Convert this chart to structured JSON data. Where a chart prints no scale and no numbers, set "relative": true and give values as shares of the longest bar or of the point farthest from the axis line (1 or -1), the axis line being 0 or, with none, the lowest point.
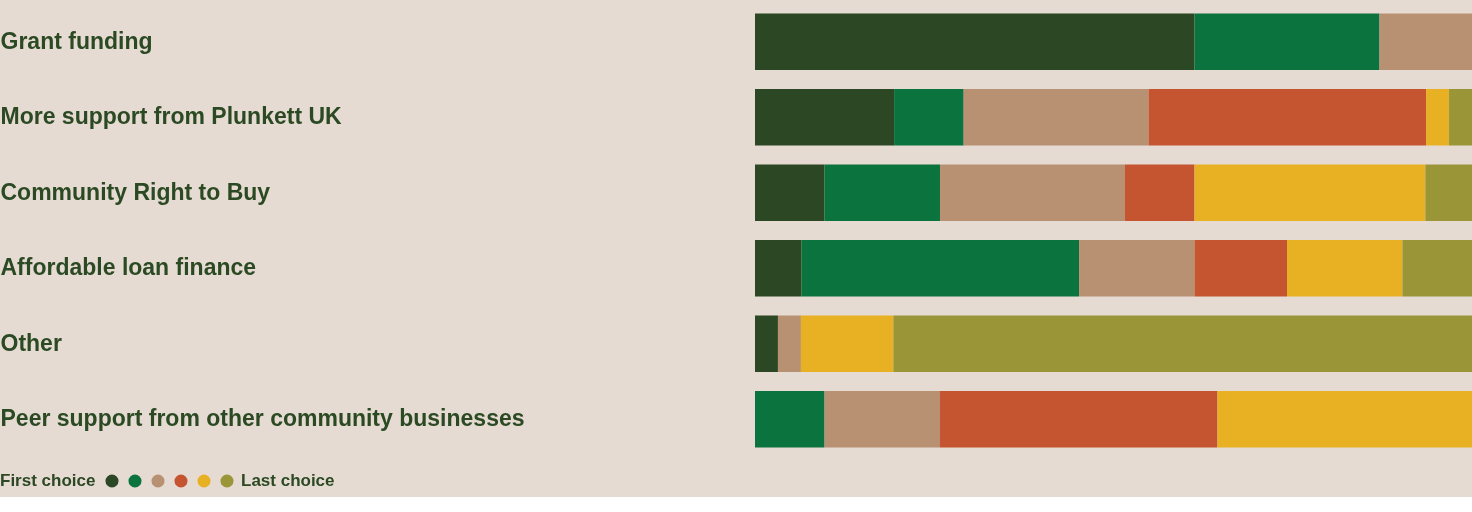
{
  "chart_data": {
    "type": "bar",
    "orientation": "horizontal",
    "stacked": true,
    "relative": true,
    "categories": [
      "Grant funding",
      "More support from Plunkett UK",
      "Community Right to Buy",
      "Affordable loan finance",
      "Other",
      "Peer support from other community businesses"
    ],
    "series": [
      {
        "name": "First choice",
        "color": "#2b4723",
        "values": [
          0.613,
          0.194,
          0.097,
          0.065,
          0.032,
          0
        ]
      },
      {
        "color": "#0b733d",
        "values": [
          0.258,
          0.097,
          0.161,
          0.387,
          0,
          0.097
        ]
      },
      {
        "color": "#b89072",
        "values": [
          0.129,
          0.258,
          0.258,
          0.161,
          0.032,
          0.161
        ]
      },
      {
        "color": "#c55530",
        "values": [
          0,
          0.387,
          0.097,
          0.129,
          0,
          0.387
        ]
      },
      {
        "color": "#e8b023",
        "values": [
          0,
          0.032,
          0.322,
          0.161,
          0.129,
          0.355
        ]
      },
      {
        "name": "Last choice",
        "color": "#9a9638",
        "values": [
          0,
          0.032,
          0.065,
          0.097,
          0.807,
          0
        ]
      }
    ],
    "legend": "bottom left"
  }
}
